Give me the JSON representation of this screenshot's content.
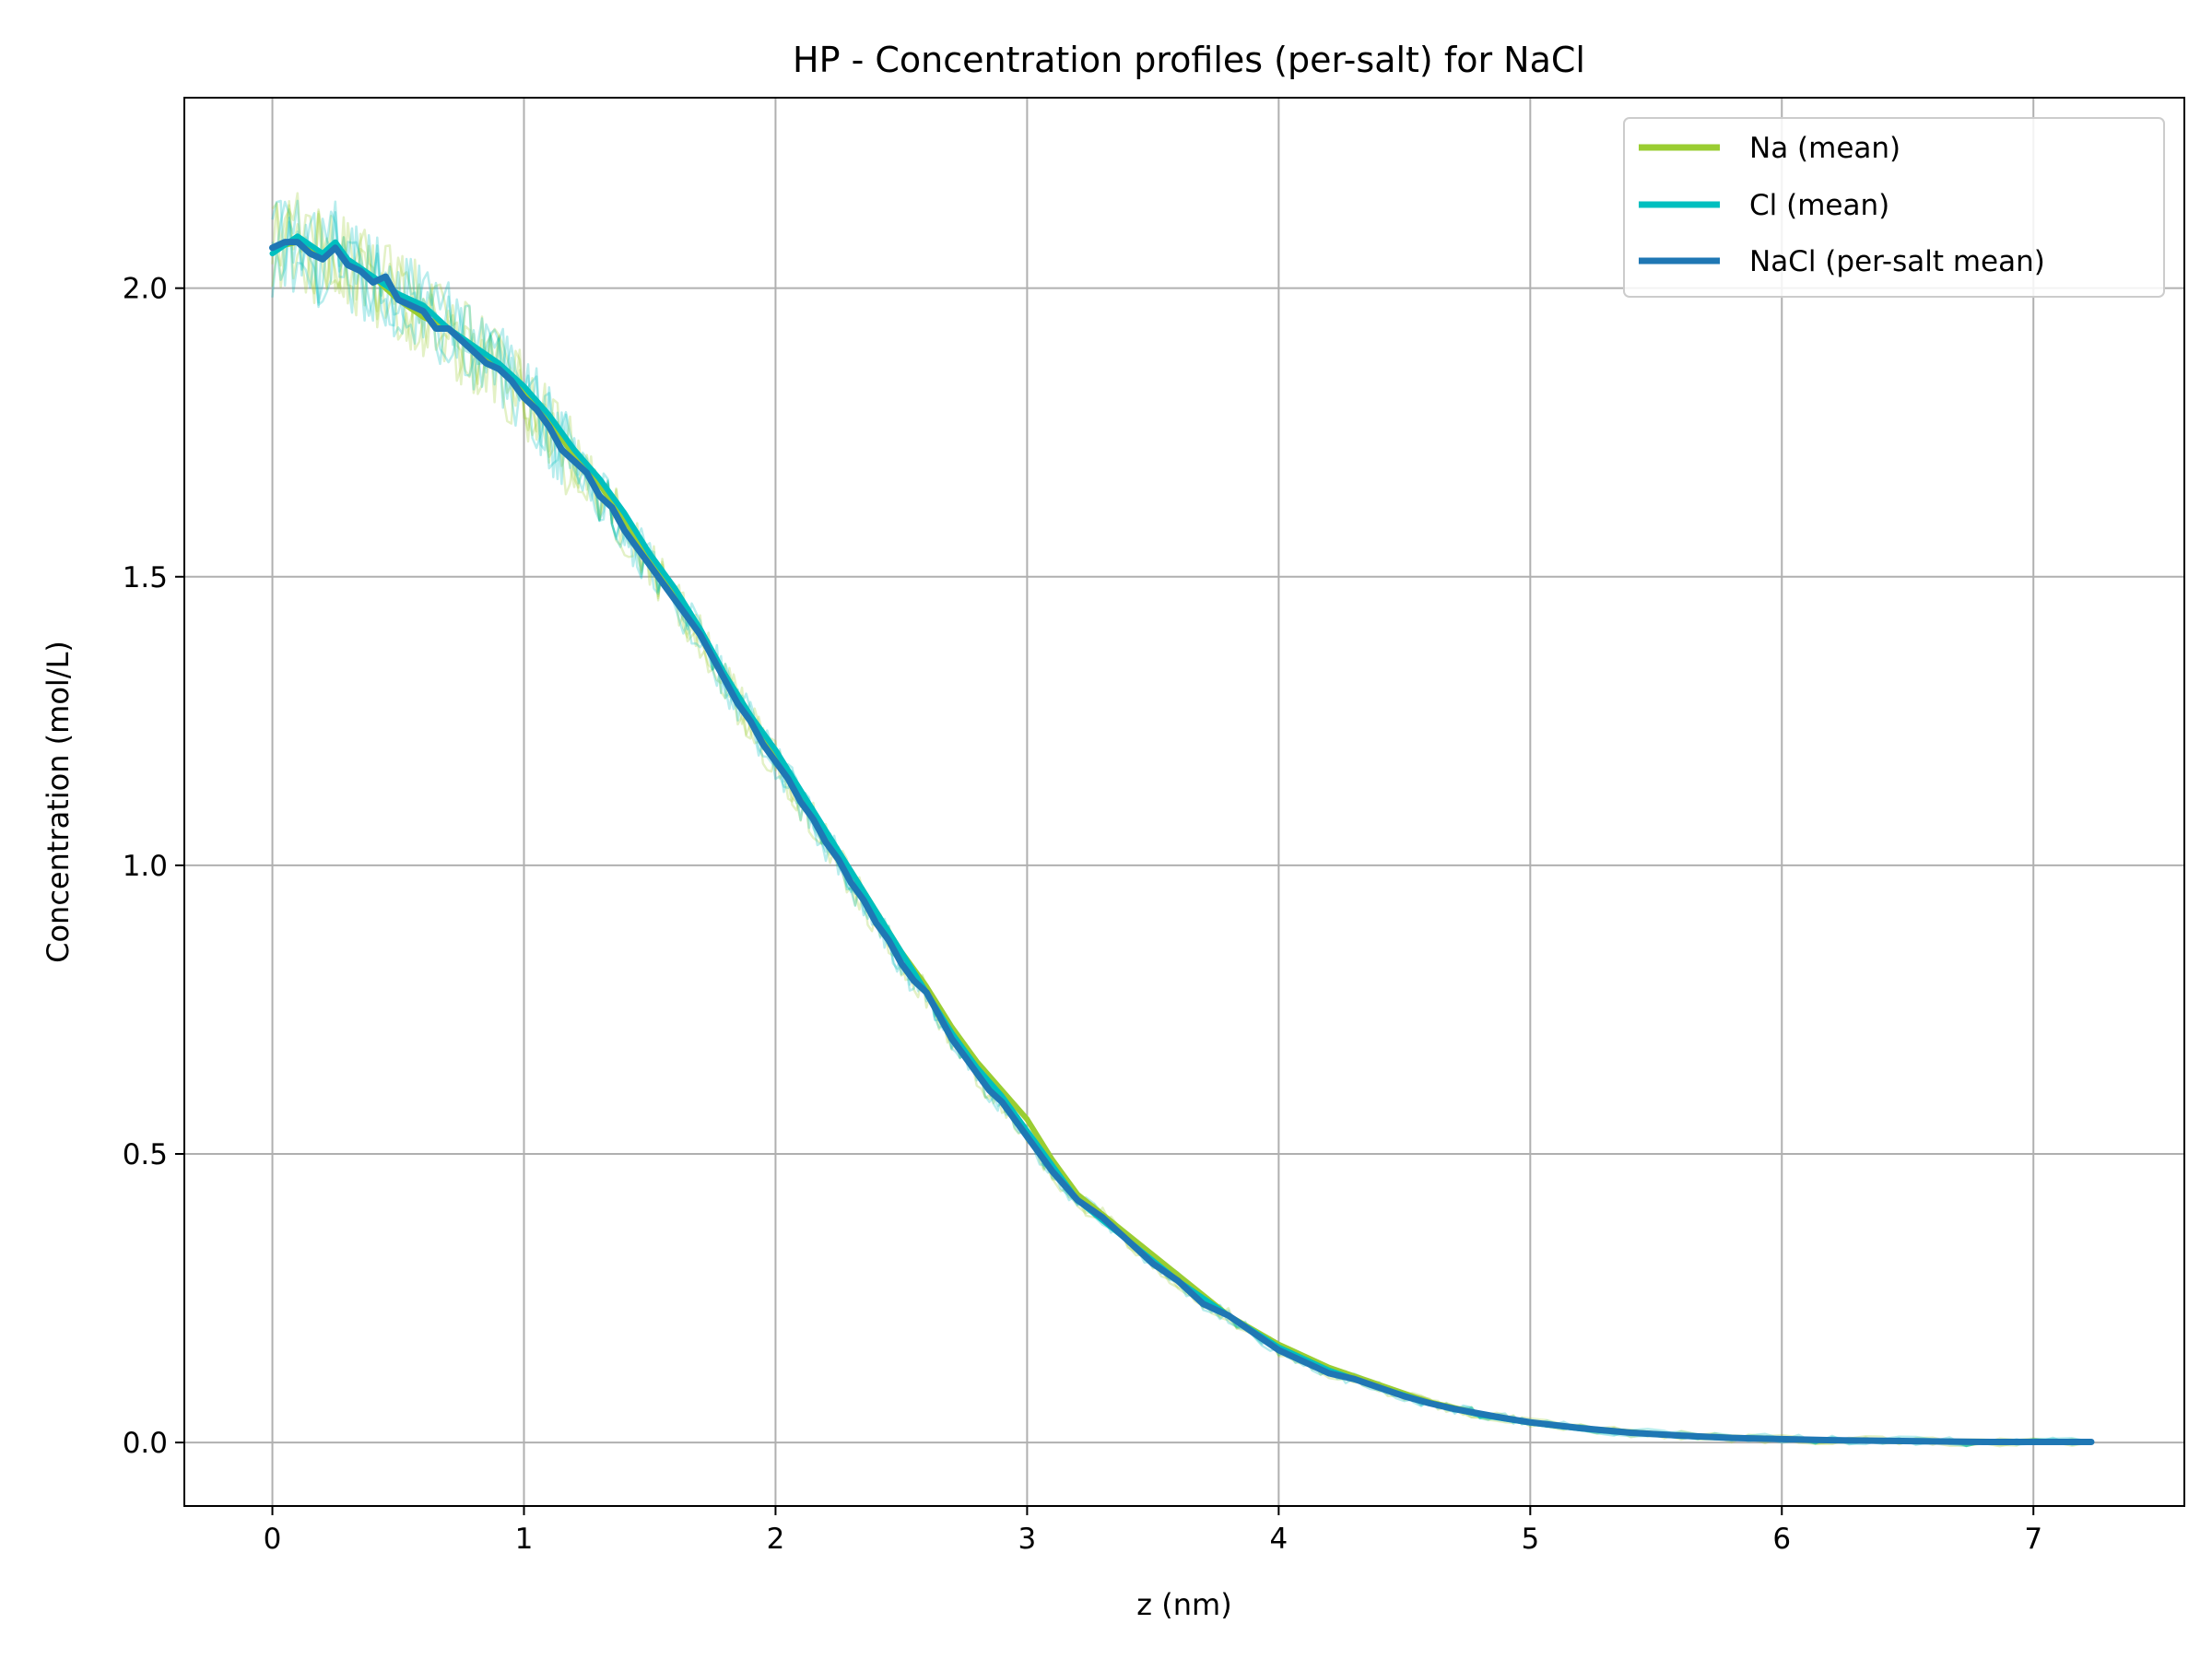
{
  "chart_data": {
    "type": "line",
    "title": "HP - Concentration profiles (per-salt) for NaCl",
    "xlabel": "z (nm)",
    "ylabel": "Concentration (mol/L)",
    "xlim": [
      -0.35,
      7.6
    ],
    "ylim": [
      -0.11,
      2.33
    ],
    "xticks": [
      0,
      1,
      2,
      3,
      4,
      5,
      6,
      7
    ],
    "yticks": [
      0.0,
      0.5,
      1.0,
      1.5,
      2.0
    ],
    "xtick_labels": [
      "0",
      "1",
      "2",
      "3",
      "4",
      "5",
      "6",
      "7"
    ],
    "ytick_labels": [
      "0.0",
      "0.5",
      "1.0",
      "1.5",
      "2.0"
    ],
    "grid": true,
    "legend_position": "top-right",
    "colors": {
      "na": "#9acd32",
      "cl": "#00bfbf",
      "nacl": "#1f77b4",
      "grid": "#b0b0b0"
    },
    "series": [
      {
        "name": "Na (mean)",
        "key": "na",
        "x": [
          0.0,
          0.1,
          0.2,
          0.25,
          0.3,
          0.4,
          0.5,
          0.6,
          0.7,
          0.8,
          0.9,
          1.0,
          1.1,
          1.2,
          1.3,
          1.4,
          1.5,
          1.6,
          1.7,
          1.8,
          1.9,
          2.0,
          2.1,
          2.2,
          2.3,
          2.4,
          2.5,
          2.6,
          2.7,
          2.8,
          2.9,
          3.0,
          3.1,
          3.2,
          3.4,
          3.6,
          3.8,
          4.0,
          4.2,
          4.4,
          4.6,
          4.8,
          5.0,
          5.2,
          5.4,
          5.6,
          5.8,
          6.0,
          6.2,
          6.4,
          6.6,
          6.8,
          7.0,
          7.23
        ],
        "y": [
          2.07,
          2.08,
          2.05,
          2.07,
          2.04,
          2.02,
          1.98,
          1.95,
          1.93,
          1.9,
          1.86,
          1.82,
          1.77,
          1.71,
          1.66,
          1.6,
          1.53,
          1.47,
          1.4,
          1.33,
          1.26,
          1.19,
          1.12,
          1.05,
          0.99,
          0.92,
          0.85,
          0.79,
          0.72,
          0.66,
          0.61,
          0.56,
          0.49,
          0.43,
          0.36,
          0.29,
          0.22,
          0.17,
          0.13,
          0.1,
          0.07,
          0.05,
          0.035,
          0.025,
          0.018,
          0.012,
          0.009,
          0.006,
          0.004,
          0.003,
          0.002,
          0.002,
          0.001,
          0.001
        ]
      },
      {
        "name": "Cl (mean)",
        "key": "cl",
        "x": [
          0.0,
          0.1,
          0.2,
          0.25,
          0.3,
          0.4,
          0.5,
          0.6,
          0.7,
          0.8,
          0.9,
          1.0,
          1.1,
          1.2,
          1.3,
          1.4,
          1.5,
          1.6,
          1.7,
          1.8,
          1.9,
          2.0,
          2.1,
          2.2,
          2.3,
          2.4,
          2.5,
          2.6,
          2.7,
          2.8,
          2.9,
          3.0,
          3.1,
          3.2,
          3.4,
          3.6,
          3.8,
          4.0,
          4.2,
          4.4,
          4.6,
          4.8,
          5.0,
          5.2,
          5.4,
          5.6,
          5.8,
          6.0,
          6.2,
          6.4,
          6.6,
          6.8,
          7.0,
          7.23
        ],
        "y": [
          2.06,
          2.09,
          2.06,
          2.08,
          2.05,
          2.02,
          1.99,
          1.97,
          1.93,
          1.9,
          1.87,
          1.83,
          1.78,
          1.72,
          1.67,
          1.61,
          1.54,
          1.48,
          1.41,
          1.33,
          1.26,
          1.2,
          1.13,
          1.06,
          0.99,
          0.92,
          0.85,
          0.78,
          0.71,
          0.65,
          0.6,
          0.54,
          0.48,
          0.42,
          0.35,
          0.28,
          0.22,
          0.165,
          0.125,
          0.095,
          0.068,
          0.048,
          0.034,
          0.024,
          0.017,
          0.011,
          0.008,
          0.006,
          0.004,
          0.003,
          0.002,
          0.001,
          0.001,
          0.001
        ]
      },
      {
        "name": "NaCl (per-salt mean)",
        "key": "nacl",
        "x": [
          0.0,
          0.05,
          0.1,
          0.15,
          0.2,
          0.25,
          0.3,
          0.35,
          0.4,
          0.45,
          0.5,
          0.55,
          0.6,
          0.65,
          0.7,
          0.75,
          0.8,
          0.85,
          0.9,
          0.95,
          1.0,
          1.05,
          1.1,
          1.15,
          1.2,
          1.25,
          1.3,
          1.35,
          1.4,
          1.45,
          1.5,
          1.55,
          1.6,
          1.65,
          1.7,
          1.75,
          1.8,
          1.85,
          1.9,
          1.95,
          2.0,
          2.05,
          2.1,
          2.15,
          2.2,
          2.25,
          2.3,
          2.35,
          2.4,
          2.45,
          2.5,
          2.55,
          2.6,
          2.65,
          2.7,
          2.75,
          2.8,
          2.85,
          2.9,
          2.95,
          3.0,
          3.05,
          3.1,
          3.2,
          3.3,
          3.4,
          3.5,
          3.6,
          3.7,
          3.8,
          3.9,
          4.0,
          4.1,
          4.2,
          4.3,
          4.4,
          4.5,
          4.6,
          4.7,
          4.8,
          4.9,
          5.0,
          5.2,
          5.4,
          5.6,
          5.8,
          6.0,
          6.2,
          6.4,
          6.6,
          6.8,
          7.0,
          7.23
        ],
        "y": [
          2.07,
          2.08,
          2.08,
          2.06,
          2.05,
          2.07,
          2.04,
          2.03,
          2.01,
          2.02,
          1.98,
          1.97,
          1.96,
          1.93,
          1.93,
          1.91,
          1.89,
          1.87,
          1.86,
          1.84,
          1.81,
          1.79,
          1.76,
          1.72,
          1.7,
          1.68,
          1.64,
          1.62,
          1.58,
          1.55,
          1.52,
          1.49,
          1.46,
          1.43,
          1.4,
          1.36,
          1.32,
          1.28,
          1.25,
          1.21,
          1.18,
          1.15,
          1.11,
          1.08,
          1.04,
          1.01,
          0.97,
          0.94,
          0.9,
          0.87,
          0.83,
          0.8,
          0.78,
          0.74,
          0.7,
          0.67,
          0.64,
          0.61,
          0.59,
          0.56,
          0.53,
          0.5,
          0.47,
          0.42,
          0.39,
          0.35,
          0.31,
          0.28,
          0.24,
          0.22,
          0.19,
          0.16,
          0.14,
          0.12,
          0.11,
          0.095,
          0.08,
          0.068,
          0.058,
          0.05,
          0.042,
          0.035,
          0.025,
          0.017,
          0.012,
          0.008,
          0.006,
          0.004,
          0.003,
          0.002,
          0.001,
          0.001,
          0.001
        ]
      }
    ]
  }
}
